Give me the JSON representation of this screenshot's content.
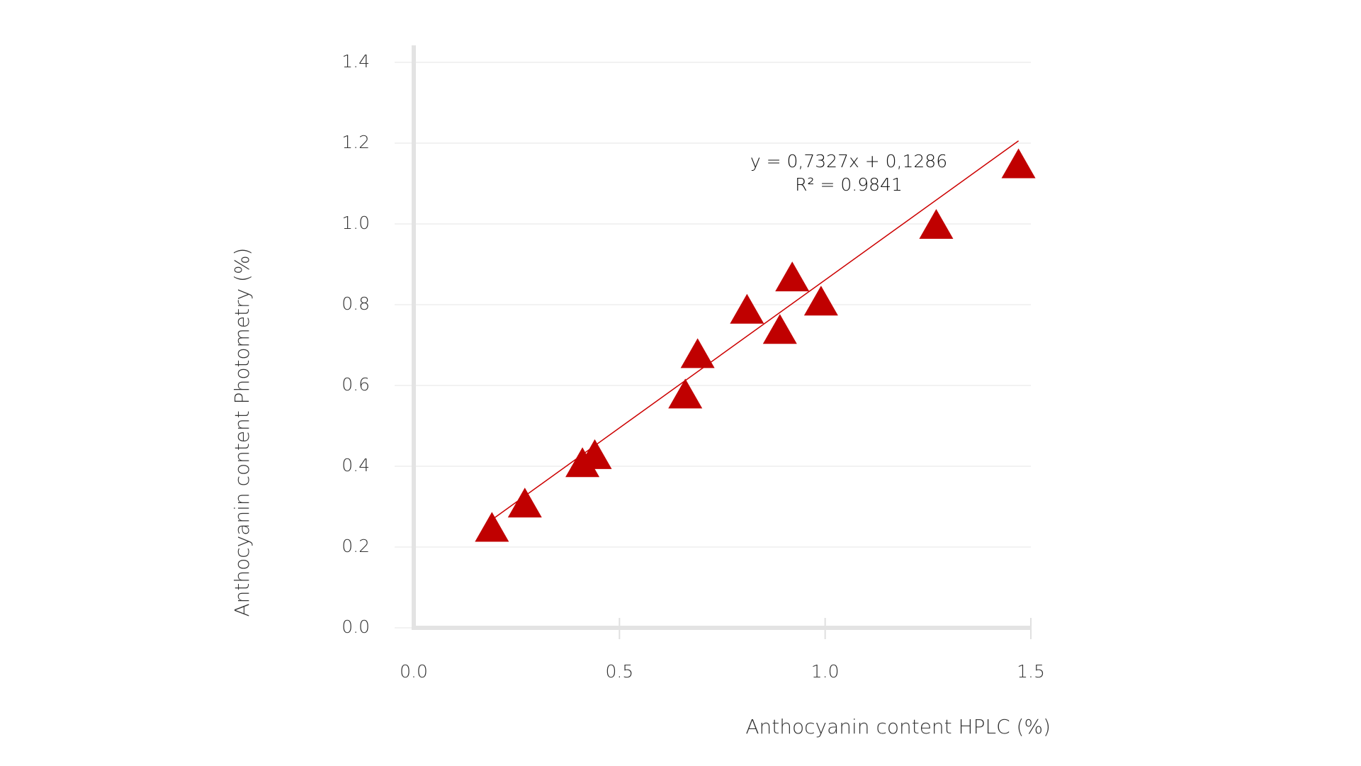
{
  "chart_data": {
    "type": "scatter",
    "x_label": "Anthocyanin content HPLC (%)",
    "y_label": "Anthocyanin content Photometry (%)",
    "annotations": [
      "y = 0,7327x + 0,1286",
      "R² = 0.9841"
    ],
    "trendline": {
      "slope": 0.7327,
      "intercept": 0.1286,
      "color": "#cc0000"
    },
    "series": [
      {
        "name": null,
        "color": "#c00000",
        "x": [
          0.19,
          0.27,
          0.41,
          0.44,
          0.66,
          0.69,
          0.81,
          0.89,
          0.92,
          0.99,
          1.27,
          1.47
        ],
        "values": [
          0.25,
          0.31,
          0.41,
          0.43,
          0.58,
          0.68,
          0.79,
          0.74,
          0.87,
          0.81,
          1.0,
          1.15
        ]
      }
    ],
    "xlim": [
      0,
      1.5
    ],
    "xticks": [
      {
        "value": 0,
        "label": "0.0"
      },
      0.5,
      {
        "value": 1,
        "label": "1.0"
      },
      1.5
    ],
    "ylim": [
      0,
      1.4
    ],
    "yticks": [
      {
        "value": 0,
        "label": "0.0"
      },
      0.2,
      0.4,
      0.6,
      0.8,
      {
        "value": 1,
        "label": "1.0"
      },
      1.2,
      1.4
    ],
    "grid": true
  }
}
